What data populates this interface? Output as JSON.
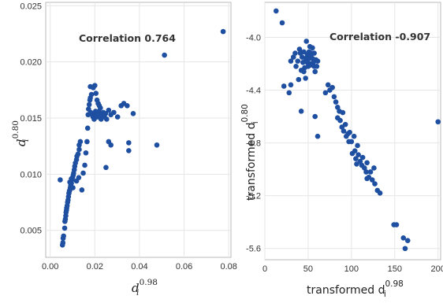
{
  "chart_data": [
    {
      "type": "scatter",
      "annotation": "Correlation 0.764",
      "xlabel": {
        "base": "d",
        "sub": "i",
        "sup": "0.98"
      },
      "ylabel": {
        "base": "d",
        "sub": "i",
        "sup": "0.80"
      },
      "xlim": [
        -0.002,
        0.081
      ],
      "ylim": [
        0.0026,
        0.0253
      ],
      "xticks": [
        0,
        0.02,
        0.04,
        0.06,
        0.08
      ],
      "xtick_labels": [
        "0.00",
        "0.02",
        "0.04",
        "0.06",
        "0.08"
      ],
      "yticks": [
        0.005,
        0.01,
        0.015,
        0.02,
        0.025
      ],
      "ytick_labels": [
        "0.005",
        "0.010",
        "0.015",
        "0.020",
        "0.025"
      ],
      "grid": true,
      "marker_color": "#1f4fa0",
      "points": [
        [
          0.0045,
          0.0095
        ],
        [
          0.0055,
          0.0037
        ],
        [
          0.0057,
          0.0039
        ],
        [
          0.0058,
          0.0043
        ],
        [
          0.006,
          0.0045
        ],
        [
          0.0065,
          0.0052
        ],
        [
          0.0066,
          0.0058
        ],
        [
          0.0068,
          0.006
        ],
        [
          0.007,
          0.0063
        ],
        [
          0.0071,
          0.0066
        ],
        [
          0.0073,
          0.0068
        ],
        [
          0.0074,
          0.007
        ],
        [
          0.0076,
          0.0072
        ],
        [
          0.0078,
          0.0075
        ],
        [
          0.008,
          0.0077
        ],
        [
          0.0082,
          0.008
        ],
        [
          0.0084,
          0.0083
        ],
        [
          0.0086,
          0.0085
        ],
        [
          0.0088,
          0.0086
        ],
        [
          0.009,
          0.0088
        ],
        [
          0.0092,
          0.009
        ],
        [
          0.0095,
          0.0092
        ],
        [
          0.0098,
          0.0095
        ],
        [
          0.01,
          0.0097
        ],
        [
          0.0103,
          0.0099
        ],
        [
          0.0105,
          0.0101
        ],
        [
          0.0108,
          0.0104
        ],
        [
          0.011,
          0.0107
        ],
        [
          0.0113,
          0.011
        ],
        [
          0.0118,
          0.0113
        ],
        [
          0.012,
          0.0116
        ],
        [
          0.0125,
          0.0118
        ],
        [
          0.013,
          0.0122
        ],
        [
          0.013,
          0.0126
        ],
        [
          0.0135,
          0.0129
        ],
        [
          0.0095,
          0.0096
        ],
        [
          0.0088,
          0.0093
        ],
        [
          0.0102,
          0.0088
        ],
        [
          0.0118,
          0.0094
        ],
        [
          0.0128,
          0.0097
        ],
        [
          0.0142,
          0.0086
        ],
        [
          0.0148,
          0.0101
        ],
        [
          0.0155,
          0.0108
        ],
        [
          0.016,
          0.0119
        ],
        [
          0.0165,
          0.0129
        ],
        [
          0.0168,
          0.0141
        ],
        [
          0.017,
          0.0153
        ],
        [
          0.0172,
          0.0158
        ],
        [
          0.0175,
          0.0162
        ],
        [
          0.0178,
          0.0166
        ],
        [
          0.018,
          0.0168
        ],
        [
          0.0185,
          0.0171
        ],
        [
          0.018,
          0.0178
        ],
        [
          0.0193,
          0.0177
        ],
        [
          0.02,
          0.0179
        ],
        [
          0.0205,
          0.0172
        ],
        [
          0.021,
          0.0166
        ],
        [
          0.0215,
          0.0163
        ],
        [
          0.022,
          0.0161
        ],
        [
          0.0225,
          0.0159
        ],
        [
          0.0182,
          0.0155
        ],
        [
          0.0188,
          0.0153
        ],
        [
          0.0192,
          0.0151
        ],
        [
          0.0197,
          0.0149
        ],
        [
          0.0203,
          0.0156
        ],
        [
          0.0208,
          0.0153
        ],
        [
          0.0212,
          0.0151
        ],
        [
          0.0218,
          0.0156
        ],
        [
          0.0223,
          0.0153
        ],
        [
          0.0228,
          0.0149
        ],
        [
          0.0232,
          0.0152
        ],
        [
          0.0238,
          0.0155
        ],
        [
          0.0243,
          0.0151
        ],
        [
          0.0248,
          0.0154
        ],
        [
          0.0253,
          0.0149
        ],
        [
          0.0262,
          0.0157
        ],
        [
          0.0272,
          0.0153
        ],
        [
          0.0285,
          0.0155
        ],
        [
          0.0302,
          0.0151
        ],
        [
          0.0318,
          0.0161
        ],
        [
          0.033,
          0.0163
        ],
        [
          0.0345,
          0.0161
        ],
        [
          0.0372,
          0.0154
        ],
        [
          0.0262,
          0.0129
        ],
        [
          0.0272,
          0.0126
        ],
        [
          0.0352,
          0.0128
        ],
        [
          0.0352,
          0.0121
        ],
        [
          0.025,
          0.0106
        ],
        [
          0.0478,
          0.0126
        ],
        [
          0.0512,
          0.0206
        ],
        [
          0.0775,
          0.0227
        ]
      ]
    },
    {
      "type": "scatter",
      "annotation": "Correlation -0.907",
      "xlabel": {
        "base": "transformed d",
        "sub": "i",
        "sup": "0.98"
      },
      "ylabel": {
        "base": "transformed d",
        "sub": "i",
        "sup": "0.80"
      },
      "xlim": [
        0,
        203
      ],
      "ylim": [
        -5.685,
        -3.735
      ],
      "xticks": [
        0,
        50,
        100,
        150,
        200
      ],
      "xtick_labels": [
        "0",
        "50",
        "100",
        "150",
        "200"
      ],
      "yticks": [
        -4.0,
        -4.4,
        -4.8,
        -5.2,
        -5.6
      ],
      "ytick_labels": [
        "-4.0",
        "-4.4",
        "-4.8",
        "-5.2",
        "-5.6"
      ],
      "grid": true,
      "marker_color": "#1f4fa0",
      "points": [
        [
          13,
          -3.8
        ],
        [
          20,
          -3.89
        ],
        [
          22,
          -4.37
        ],
        [
          28,
          -4.42
        ],
        [
          30,
          -4.36
        ],
        [
          30,
          -4.18
        ],
        [
          33,
          -4.15
        ],
        [
          35,
          -4.12
        ],
        [
          36,
          -4.22
        ],
        [
          38,
          -4.18
        ],
        [
          39,
          -4.32
        ],
        [
          40,
          -4.09
        ],
        [
          41,
          -4.12
        ],
        [
          42,
          -4.25
        ],
        [
          43,
          -4.15
        ],
        [
          44,
          -4.19
        ],
        [
          45,
          -4.11
        ],
        [
          45,
          -4.26
        ],
        [
          46,
          -4.23
        ],
        [
          47,
          -4.16
        ],
        [
          47,
          -4.31
        ],
        [
          48,
          -4.03
        ],
        [
          49,
          -4.13
        ],
        [
          49,
          -4.19
        ],
        [
          50,
          -4.13
        ],
        [
          50,
          -4.22
        ],
        [
          51,
          -4.11
        ],
        [
          51,
          -4.16
        ],
        [
          52,
          -4.2
        ],
        [
          52,
          -4.07
        ],
        [
          53,
          -4.14
        ],
        [
          53,
          -4.21
        ],
        [
          54,
          -4.12
        ],
        [
          55,
          -4.16
        ],
        [
          55,
          -4.08
        ],
        [
          56,
          -4.19
        ],
        [
          57,
          -4.12
        ],
        [
          57,
          -4.22
        ],
        [
          58,
          -4.26
        ],
        [
          59,
          -4.17
        ],
        [
          60,
          -4.22
        ],
        [
          61,
          -4.18
        ],
        [
          42,
          -4.56
        ],
        [
          58,
          -4.6
        ],
        [
          61,
          -4.75
        ],
        [
          70,
          -4.42
        ],
        [
          73,
          -4.36
        ],
        [
          75,
          -4.4
        ],
        [
          78,
          -4.38
        ],
        [
          80,
          -4.45
        ],
        [
          82,
          -4.49
        ],
        [
          84,
          -4.53
        ],
        [
          86,
          -4.56
        ],
        [
          84,
          -4.61
        ],
        [
          87,
          -4.63
        ],
        [
          89,
          -4.68
        ],
        [
          90,
          -4.57
        ],
        [
          91,
          -4.71
        ],
        [
          93,
          -4.66
        ],
        [
          94,
          -4.75
        ],
        [
          96,
          -4.73
        ],
        [
          97,
          -4.79
        ],
        [
          98,
          -4.72
        ],
        [
          100,
          -4.79
        ],
        [
          101,
          -4.88
        ],
        [
          103,
          -4.75
        ],
        [
          104,
          -4.86
        ],
        [
          105,
          -4.92
        ],
        [
          106,
          -4.96
        ],
        [
          107,
          -4.82
        ],
        [
          108,
          -4.89
        ],
        [
          110,
          -4.94
        ],
        [
          112,
          -4.97
        ],
        [
          113,
          -4.91
        ],
        [
          115,
          -4.99
        ],
        [
          117,
          -5.02
        ],
        [
          118,
          -4.95
        ],
        [
          120,
          -5.06
        ],
        [
          122,
          -5.02
        ],
        [
          124,
          -5.08
        ],
        [
          126,
          -4.99
        ],
        [
          127,
          -5.11
        ],
        [
          130,
          -5.16
        ],
        [
          133,
          -5.18
        ],
        [
          118,
          -5.07
        ],
        [
          149,
          -5.42
        ],
        [
          152,
          -5.42
        ],
        [
          160,
          -5.52
        ],
        [
          162,
          -5.6
        ],
        [
          165,
          -5.54
        ],
        [
          200,
          -4.64
        ]
      ]
    }
  ]
}
